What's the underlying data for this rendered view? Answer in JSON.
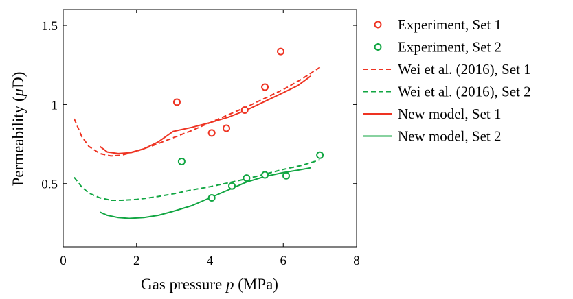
{
  "chart_data": {
    "type": "scatter",
    "xlabel_text": "Gas pressure ",
    "xlabel_var": "p",
    "xlabel_unit": " (MPa)",
    "ylabel_text": "Permeability (",
    "ylabel_var": "μ",
    "ylabel_unit": "D)",
    "xlim": [
      0,
      8
    ],
    "ylim": [
      0.1,
      1.6
    ],
    "xticks": [
      0,
      2,
      4,
      6,
      8
    ],
    "xtick_labels": [
      "0",
      "2",
      "4",
      "6",
      "8"
    ],
    "yticks": [
      0.5,
      1,
      1.5
    ],
    "ytick_labels": [
      "0.5",
      "1",
      "1.5"
    ],
    "grid": false,
    "legend_position": "outside-right",
    "series": [
      {
        "name": "Experiment, Set 1",
        "style": "marker",
        "color": "#ee3322",
        "points": [
          [
            3.1,
            1.015
          ],
          [
            4.05,
            0.82
          ],
          [
            4.45,
            0.85
          ],
          [
            4.95,
            0.965
          ],
          [
            5.5,
            1.11
          ],
          [
            5.93,
            1.335
          ]
        ]
      },
      {
        "name": "Experiment, Set 2",
        "style": "marker",
        "color": "#11a642",
        "points": [
          [
            3.23,
            0.64
          ],
          [
            4.05,
            0.41
          ],
          [
            4.6,
            0.485
          ],
          [
            5.0,
            0.535
          ],
          [
            5.5,
            0.555
          ],
          [
            6.08,
            0.55
          ],
          [
            7.0,
            0.68
          ]
        ]
      },
      {
        "name": "Wei et al. (2016), Set 1",
        "style": "dashed",
        "color": "#ee3322",
        "points": [
          [
            0.3,
            0.91
          ],
          [
            0.5,
            0.8
          ],
          [
            0.7,
            0.735
          ],
          [
            1.0,
            0.69
          ],
          [
            1.3,
            0.675
          ],
          [
            1.6,
            0.68
          ],
          [
            2.0,
            0.705
          ],
          [
            2.5,
            0.745
          ],
          [
            3.0,
            0.79
          ],
          [
            3.5,
            0.835
          ],
          [
            4.0,
            0.885
          ],
          [
            4.5,
            0.935
          ],
          [
            5.0,
            0.985
          ],
          [
            5.5,
            1.04
          ],
          [
            6.0,
            1.095
          ],
          [
            6.5,
            1.16
          ],
          [
            7.0,
            1.235
          ]
        ]
      },
      {
        "name": "Wei et al. (2016), Set 2",
        "style": "dashed",
        "color": "#11a642",
        "points": [
          [
            0.3,
            0.54
          ],
          [
            0.5,
            0.48
          ],
          [
            0.7,
            0.44
          ],
          [
            1.0,
            0.41
          ],
          [
            1.3,
            0.395
          ],
          [
            1.6,
            0.395
          ],
          [
            2.0,
            0.4
          ],
          [
            2.5,
            0.415
          ],
          [
            3.0,
            0.435
          ],
          [
            3.5,
            0.46
          ],
          [
            4.0,
            0.48
          ],
          [
            4.5,
            0.505
          ],
          [
            5.0,
            0.53
          ],
          [
            5.5,
            0.56
          ],
          [
            6.0,
            0.59
          ],
          [
            6.5,
            0.615
          ],
          [
            7.0,
            0.65
          ]
        ]
      },
      {
        "name": "New model, Set 1",
        "style": "solid",
        "color": "#ee3322",
        "points": [
          [
            1.0,
            0.735
          ],
          [
            1.2,
            0.7
          ],
          [
            1.5,
            0.69
          ],
          [
            1.8,
            0.695
          ],
          [
            2.2,
            0.72
          ],
          [
            2.6,
            0.765
          ],
          [
            3.0,
            0.83
          ],
          [
            3.5,
            0.855
          ],
          [
            4.0,
            0.885
          ],
          [
            4.5,
            0.92
          ],
          [
            5.0,
            0.965
          ],
          [
            5.5,
            1.02
          ],
          [
            6.0,
            1.075
          ],
          [
            6.4,
            1.12
          ],
          [
            6.75,
            1.18
          ]
        ]
      },
      {
        "name": "New model, Set 2",
        "style": "solid",
        "color": "#11a642",
        "points": [
          [
            1.0,
            0.32
          ],
          [
            1.2,
            0.3
          ],
          [
            1.5,
            0.285
          ],
          [
            1.8,
            0.28
          ],
          [
            2.2,
            0.285
          ],
          [
            2.6,
            0.3
          ],
          [
            3.0,
            0.325
          ],
          [
            3.5,
            0.36
          ],
          [
            4.0,
            0.41
          ],
          [
            4.5,
            0.46
          ],
          [
            5.0,
            0.51
          ],
          [
            5.5,
            0.545
          ],
          [
            6.0,
            0.57
          ],
          [
            6.4,
            0.585
          ],
          [
            6.75,
            0.6
          ]
        ]
      }
    ]
  }
}
